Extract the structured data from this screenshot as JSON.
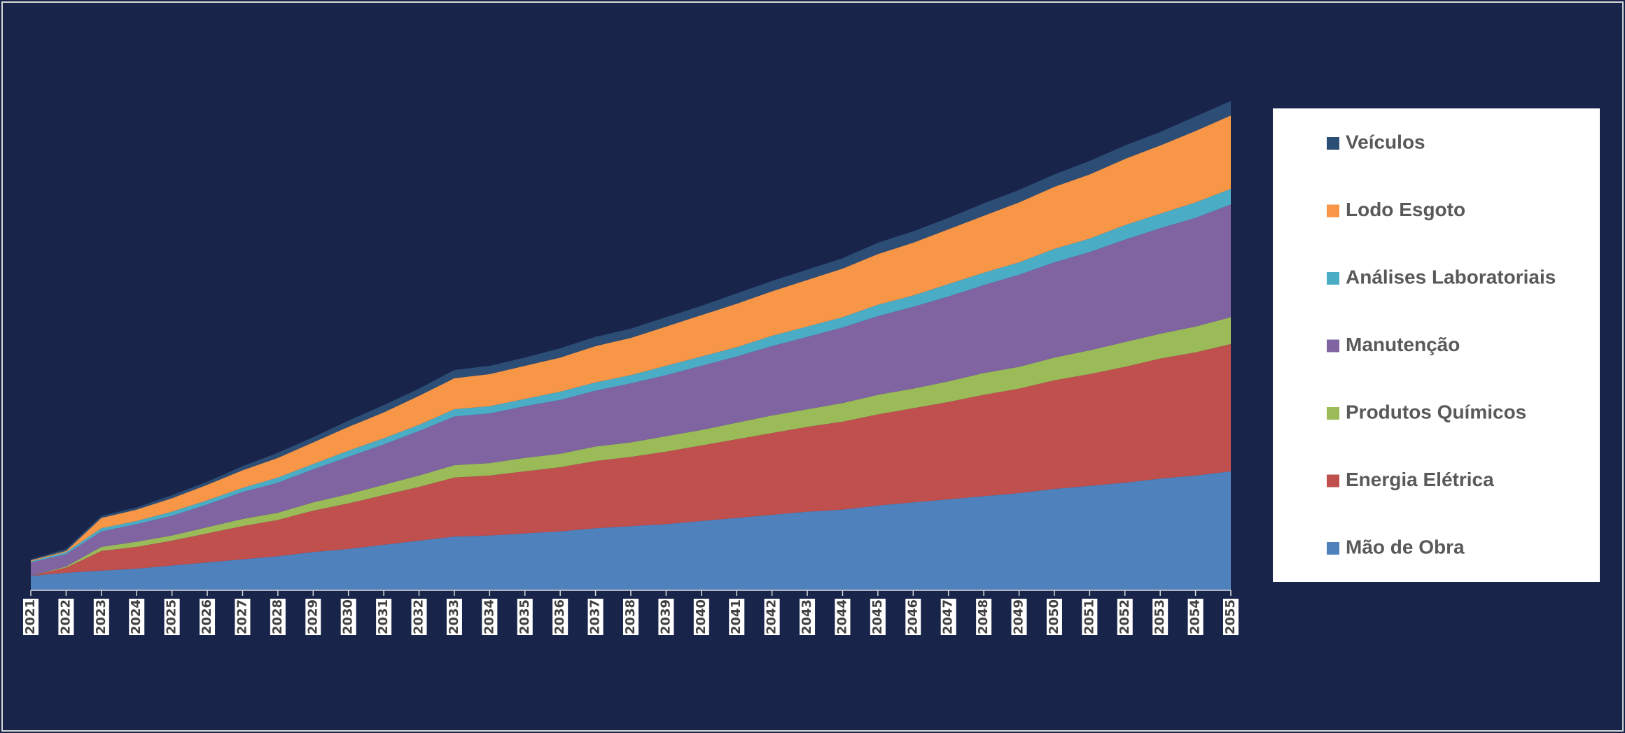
{
  "chart_data": {
    "type": "stacked-area",
    "categories": [
      "2021",
      "2022",
      "2023",
      "2024",
      "2025",
      "2026",
      "2027",
      "2028",
      "2029",
      "2030",
      "2031",
      "2032",
      "2033",
      "2034",
      "2035",
      "2036",
      "2037",
      "2038",
      "2039",
      "2040",
      "2041",
      "2042",
      "2043",
      "2044",
      "2045",
      "2046",
      "2047",
      "2048",
      "2049",
      "2050",
      "2051",
      "2052",
      "2053",
      "2054",
      "2055"
    ],
    "ylim": [
      0,
      480
    ],
    "series": [
      {
        "name": "Mão de Obra",
        "color": "#4f81bd",
        "values": [
          14,
          17,
          19,
          21,
          24,
          27,
          30,
          33,
          37,
          40,
          44,
          48,
          52,
          53,
          55,
          57,
          60,
          62,
          64,
          67,
          70,
          73,
          76,
          78,
          82,
          85,
          88,
          91,
          94,
          98,
          101,
          104,
          108,
          111,
          115
        ]
      },
      {
        "name": "Energia Elétrica",
        "color": "#c0504d",
        "values": [
          0,
          5,
          19,
          21,
          24,
          28,
          32,
          35,
          40,
          44,
          48,
          52,
          57,
          58,
          60,
          62,
          65,
          67,
          70,
          73,
          76,
          79,
          82,
          85,
          88,
          91,
          94,
          98,
          101,
          105,
          108,
          112,
          116,
          119,
          123
        ]
      },
      {
        "name": "Produtos Químicos",
        "color": "#9bbb59",
        "values": [
          0,
          1,
          4,
          5,
          5,
          6,
          7,
          7,
          8,
          9,
          10,
          11,
          12,
          12,
          13,
          13,
          14,
          14,
          15,
          15,
          16,
          17,
          17,
          18,
          19,
          19,
          20,
          21,
          21,
          22,
          23,
          24,
          24,
          25,
          26
        ]
      },
      {
        "name": "Manutenção",
        "color": "#8064a2",
        "values": [
          13,
          12,
          15,
          17,
          19,
          22,
          26,
          29,
          32,
          36,
          39,
          43,
          47,
          48,
          50,
          52,
          54,
          57,
          59,
          62,
          64,
          67,
          70,
          73,
          76,
          79,
          82,
          85,
          89,
          92,
          95,
          99,
          102,
          105,
          109
        ]
      },
      {
        "name": "Análises Laboratoriais",
        "color": "#4bacc6",
        "values": [
          1,
          2,
          3,
          3,
          4,
          4,
          4,
          5,
          5,
          6,
          6,
          6,
          7,
          7,
          7,
          8,
          8,
          8,
          9,
          9,
          9,
          10,
          10,
          10,
          11,
          11,
          12,
          12,
          12,
          13,
          13,
          14,
          14,
          15,
          15
        ]
      },
      {
        "name": "Lodo Esgoto",
        "color": "#f79646",
        "values": [
          1,
          1,
          10,
          11,
          13,
          15,
          17,
          19,
          21,
          23,
          25,
          28,
          30,
          31,
          32,
          33,
          35,
          36,
          38,
          40,
          42,
          43,
          45,
          47,
          49,
          51,
          53,
          55,
          58,
          60,
          62,
          64,
          66,
          69,
          71
        ]
      },
      {
        "name": "Veículos",
        "color": "#2c4d75",
        "values": [
          1,
          2,
          2,
          2,
          3,
          3,
          4,
          5,
          5,
          6,
          7,
          7,
          8,
          8,
          8,
          9,
          9,
          9,
          9,
          9,
          10,
          10,
          10,
          10,
          11,
          11,
          11,
          12,
          12,
          12,
          13,
          13,
          13,
          14,
          14
        ]
      }
    ]
  }
}
